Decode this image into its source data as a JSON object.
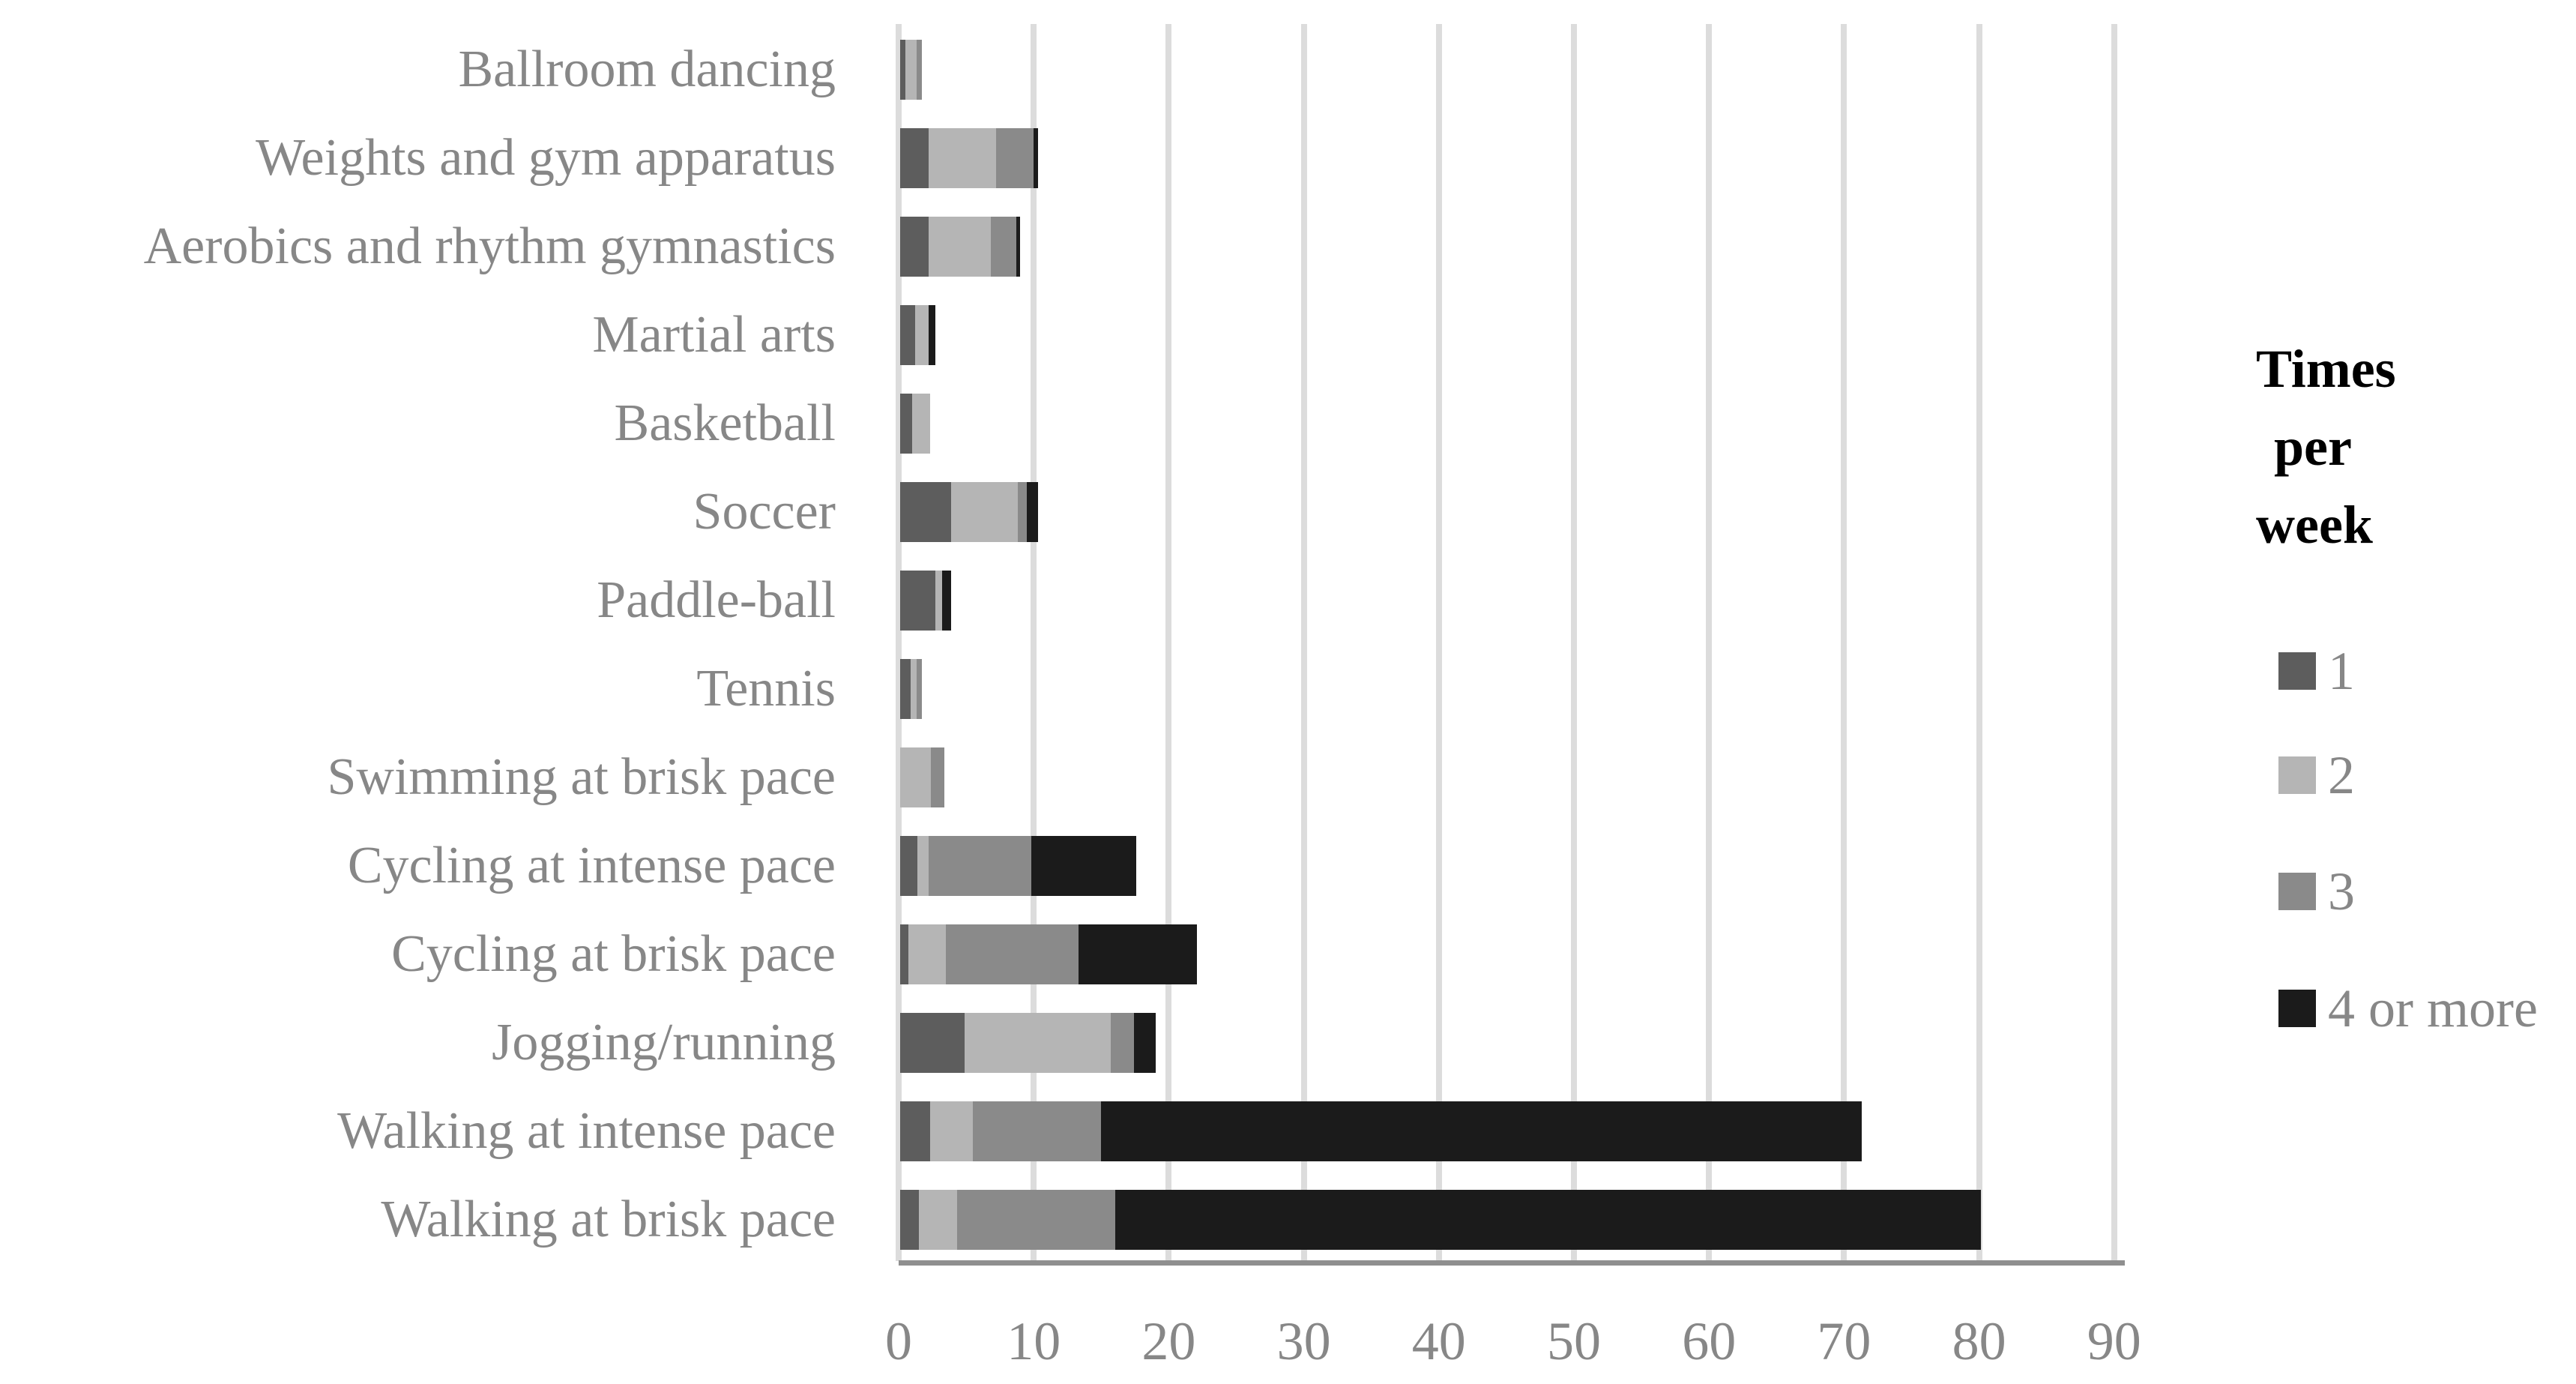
{
  "chart_data": {
    "type": "bar",
    "orientation": "horizontal",
    "stacked": true,
    "title": "",
    "xlabel": "",
    "ylabel": "",
    "grid": true,
    "legend_title": "Times per week",
    "legend_position": "right",
    "xlim": [
      0,
      90
    ],
    "x_ticks": [
      0,
      10,
      20,
      30,
      40,
      50,
      60,
      70,
      80,
      90
    ],
    "categories": [
      "Ballroom dancing",
      "Weights and gym apparatus",
      "Aerobics and rhythm gymnastics",
      "Martial arts",
      "Basketball",
      "Soccer",
      "Paddle-ball",
      "Tennis",
      "Swimming at brisk pace",
      "Cycling at intense pace",
      "Cycling at brisk pace",
      "Jogging/running",
      "Walking at intense pace",
      "Walking at brisk pace"
    ],
    "series": [
      {
        "name": "1",
        "color": "#5d5d5d",
        "values": [
          0.4,
          2.1,
          2.1,
          1.1,
          0.9,
          3.8,
          2.6,
          0.8,
          0,
          1.3,
          0.6,
          4.8,
          2.2,
          1.4
        ]
      },
      {
        "name": "2",
        "color": "#b5b5b5",
        "values": [
          0.8,
          5.0,
          4.6,
          1.0,
          1.3,
          4.9,
          0.5,
          0.4,
          2.3,
          0.8,
          2.8,
          10.8,
          3.2,
          2.8
        ]
      },
      {
        "name": "3",
        "color": "#8a8a8a",
        "values": [
          0.4,
          2.8,
          1.9,
          0,
          0,
          0.7,
          0,
          0.4,
          1.0,
          7.6,
          9.8,
          1.7,
          9.5,
          11.7
        ]
      },
      {
        "name": "4 or more",
        "color": "#1b1b1b",
        "values": [
          0,
          0.3,
          0.3,
          0.5,
          0,
          0.8,
          0.7,
          0,
          0,
          7.8,
          8.8,
          1.6,
          56.3,
          64.1
        ]
      }
    ]
  },
  "legend": {
    "title_lines": [
      "Times",
      "per",
      "week"
    ],
    "items": [
      {
        "label": "1",
        "color": "#5d5d5d"
      },
      {
        "label": "2",
        "color": "#b5b5b5"
      },
      {
        "label": "3",
        "color": "#8a8a8a"
      },
      {
        "label": "4 or more",
        "color": "#1b1b1b"
      }
    ]
  },
  "colors": {
    "background": "#ffffff",
    "gridline": "#dcdcdc",
    "axis_line": "#8f8f8f",
    "label_text": "#878787",
    "legend_title_text": "#000000"
  }
}
